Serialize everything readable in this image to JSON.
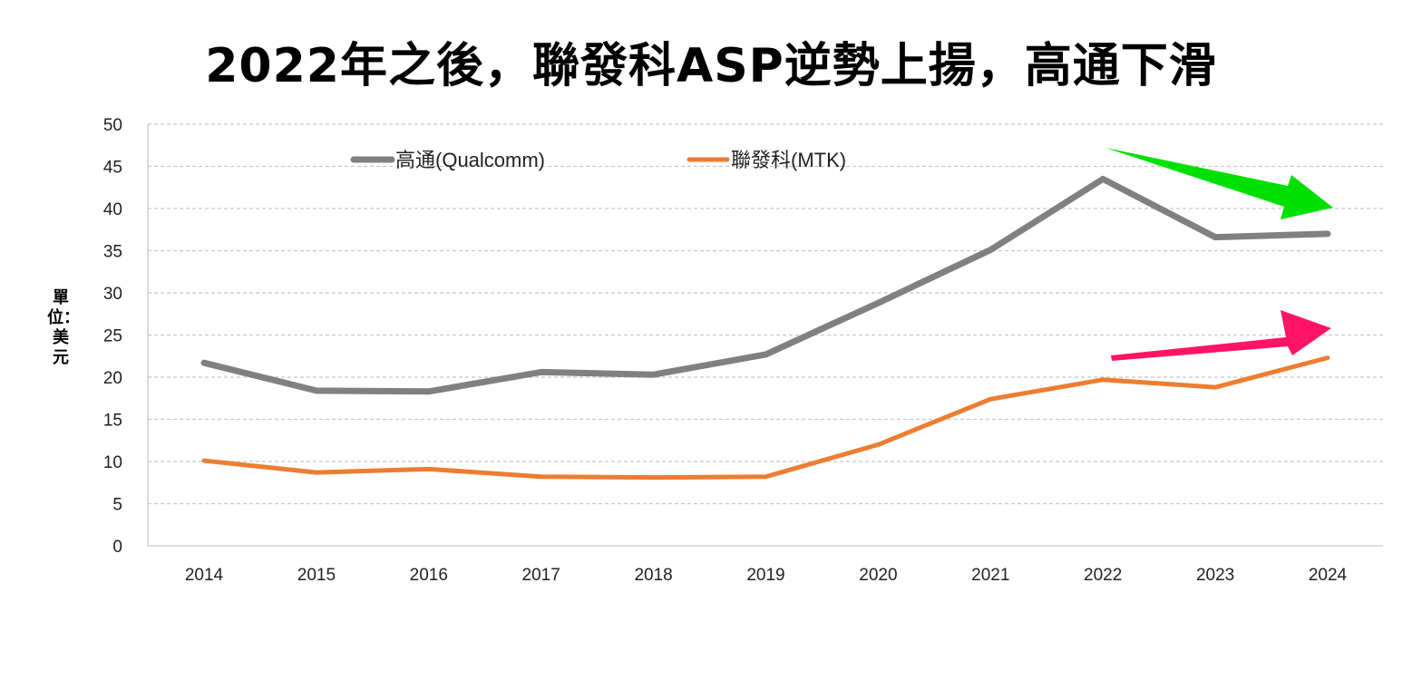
{
  "chart_data": {
    "type": "line",
    "title": "2022年之後，聯發科ASP逆勢上揚，高通下滑",
    "xlabel": "",
    "ylabel": "單位：美元",
    "categories": [
      "2014",
      "2015",
      "2016",
      "2017",
      "2018",
      "2019",
      "2020",
      "2021",
      "2022",
      "2023",
      "2024"
    ],
    "ylim": [
      0,
      50
    ],
    "yticks": [
      "0",
      "5",
      "10",
      "15",
      "20",
      "25",
      "30",
      "35",
      "40",
      "45",
      "50"
    ],
    "grid": true,
    "legend_position": "top",
    "series": [
      {
        "name": "高通(Qualcomm)",
        "color": "#808080",
        "values": [
          21.7,
          18.4,
          18.3,
          20.6,
          20.3,
          22.7,
          28.8,
          35.1,
          43.5,
          36.6,
          37.0
        ]
      },
      {
        "name": "聯發科(MTK)",
        "color": "#ED7D31",
        "values": [
          10.1,
          8.7,
          9.1,
          8.2,
          8.1,
          8.2,
          12.0,
          17.4,
          19.7,
          18.8,
          22.3
        ]
      }
    ],
    "annotations": [
      {
        "type": "arrow",
        "color": "#00E000",
        "direction": "down-right",
        "from_year": "2022",
        "to_year": "2024"
      },
      {
        "type": "arrow",
        "color": "#FF1466",
        "direction": "up-right",
        "from_year": "2022",
        "to_year": "2024"
      }
    ]
  }
}
